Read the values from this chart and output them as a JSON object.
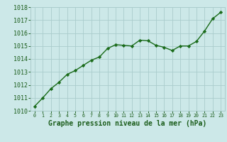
{
  "x": [
    0,
    1,
    2,
    3,
    4,
    5,
    6,
    7,
    8,
    9,
    10,
    11,
    12,
    13,
    14,
    15,
    16,
    17,
    18,
    19,
    20,
    21,
    22,
    23
  ],
  "y": [
    1010.35,
    1011.0,
    1011.7,
    1012.2,
    1012.8,
    1013.1,
    1013.5,
    1013.9,
    1014.15,
    1014.8,
    1015.1,
    1015.05,
    1015.0,
    1015.45,
    1015.4,
    1015.05,
    1014.9,
    1014.65,
    1015.0,
    1015.0,
    1015.35,
    1016.15,
    1017.1,
    1017.6
  ],
  "ylim": [
    1010,
    1018
  ],
  "xlim": [
    -0.5,
    23.5
  ],
  "yticks": [
    1010,
    1011,
    1012,
    1013,
    1014,
    1015,
    1016,
    1017,
    1018
  ],
  "xticks": [
    0,
    1,
    2,
    3,
    4,
    5,
    6,
    7,
    8,
    9,
    10,
    11,
    12,
    13,
    14,
    15,
    16,
    17,
    18,
    19,
    20,
    21,
    22,
    23
  ],
  "xlabel": "Graphe pression niveau de la mer (hPa)",
  "line_color": "#1a6b1a",
  "marker": "D",
  "marker_size": 2.2,
  "line_width": 1.0,
  "bg_color": "#cce8e8",
  "grid_color": "#aacccc",
  "tick_color": "#1a5c1a",
  "label_color": "#1a5c1a",
  "xlabel_fontsize": 7.0,
  "ytick_fontsize": 6.0,
  "xtick_fontsize": 4.8
}
